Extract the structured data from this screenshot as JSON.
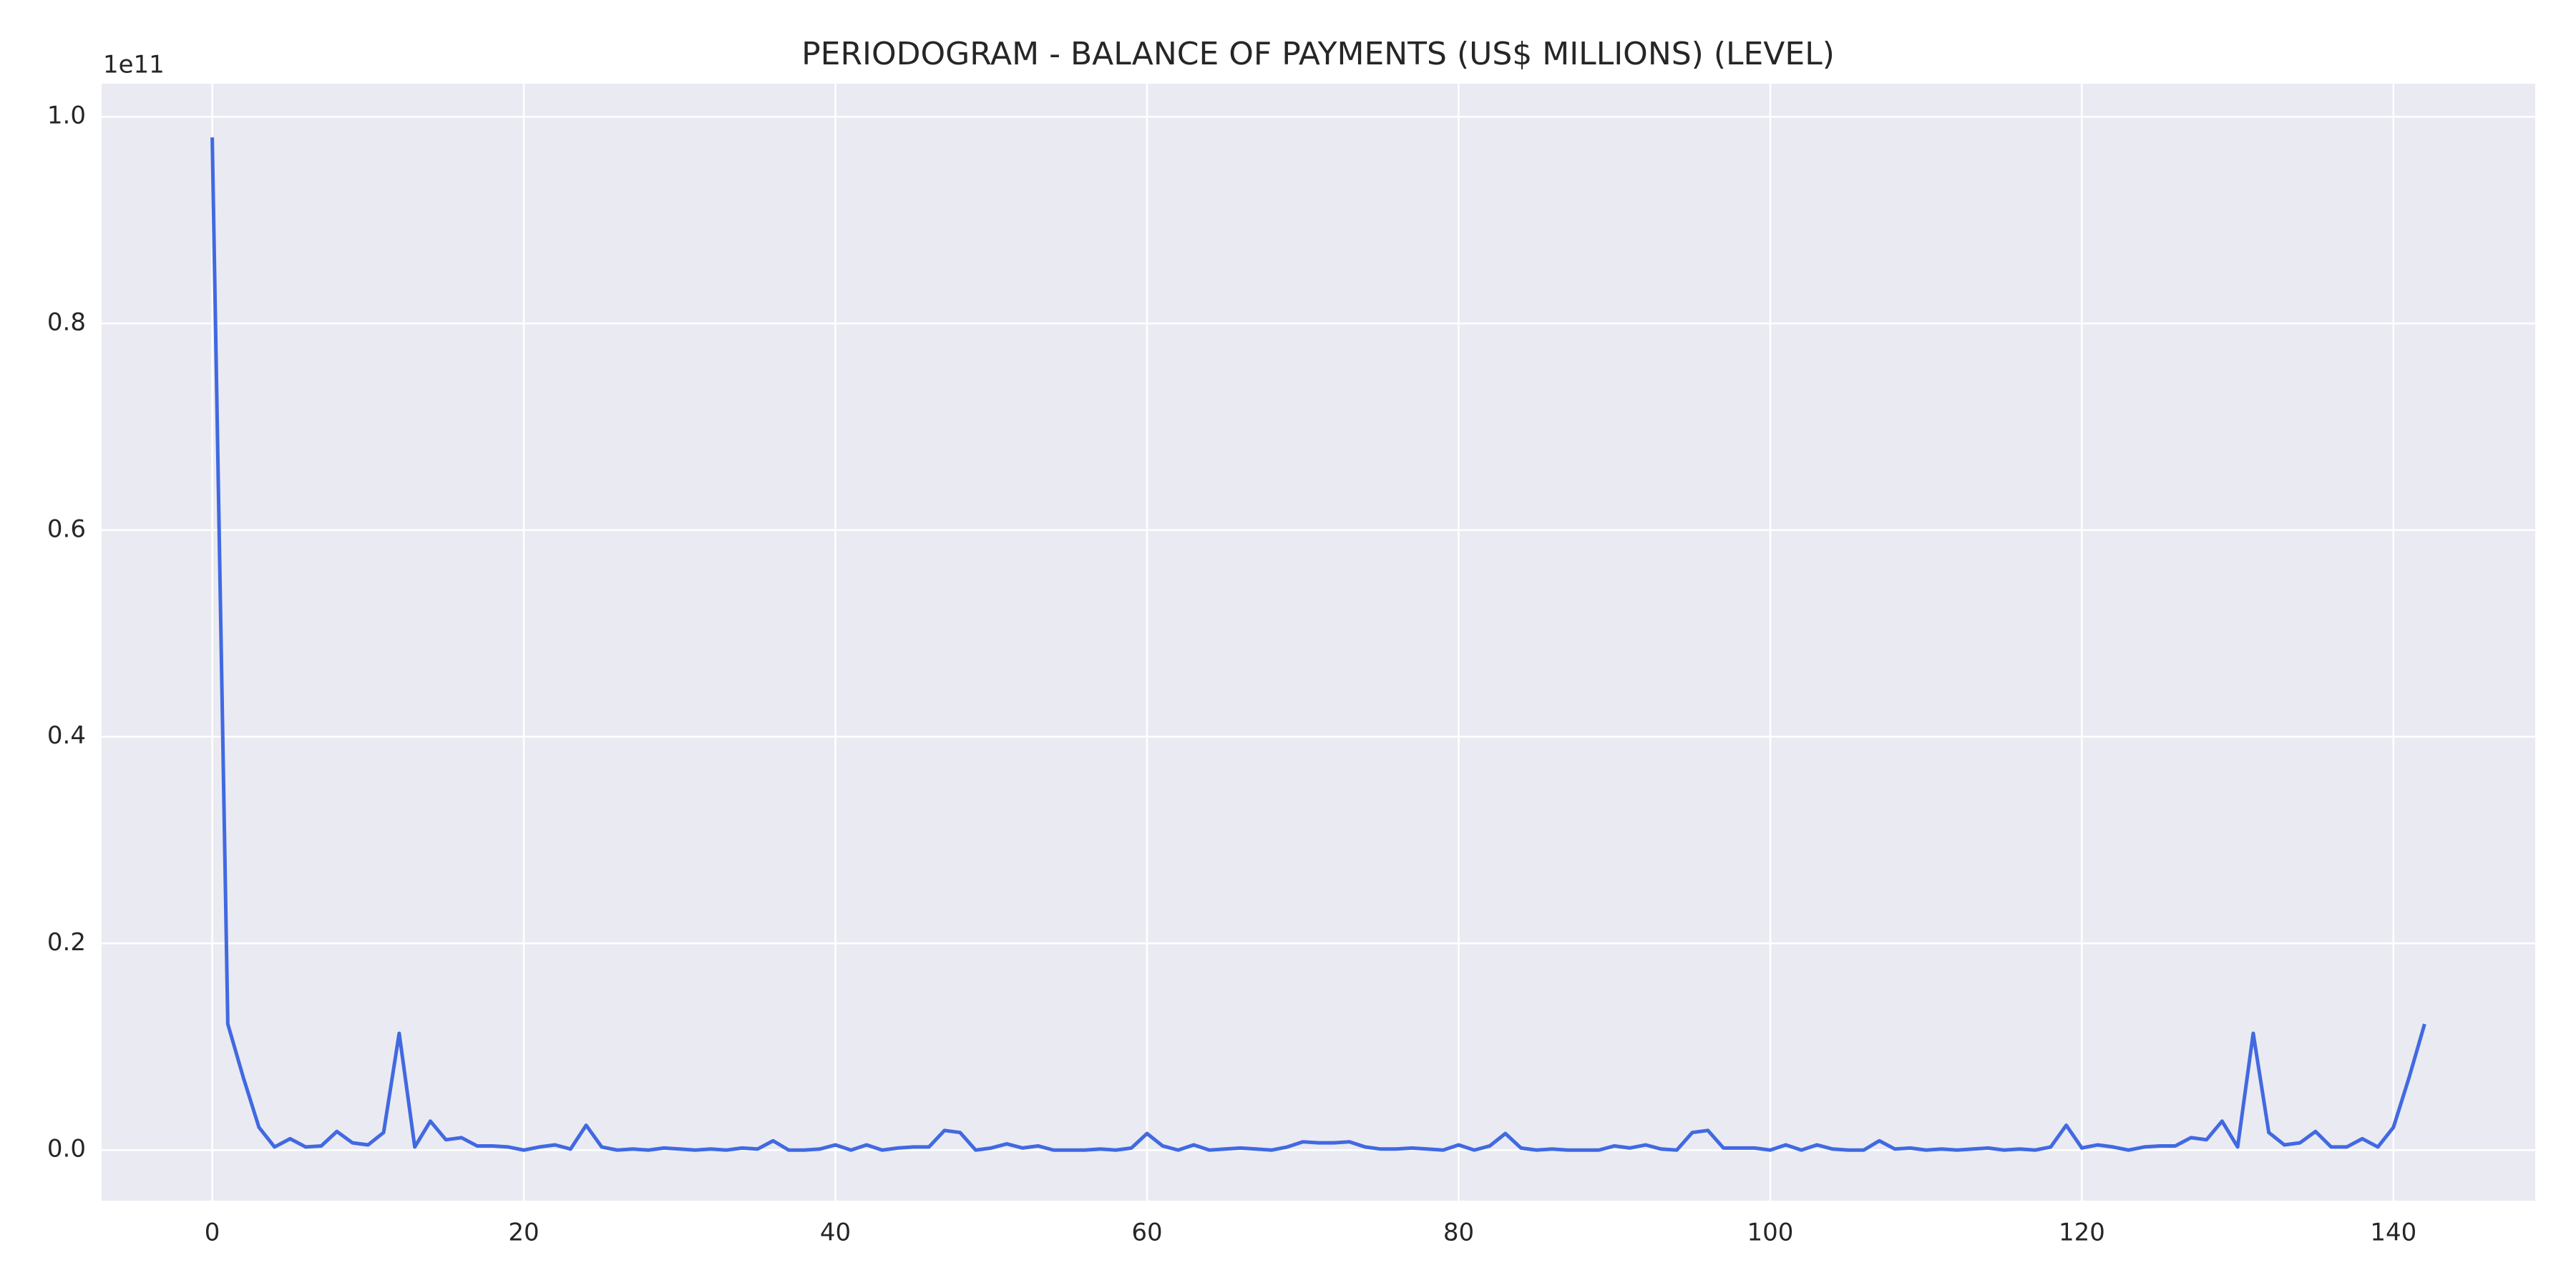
{
  "chart_data": {
    "type": "line",
    "title": "PERIODOGRAM - BALANCE OF PAYMENTS (US$ MILLIONS) (LEVEL)",
    "offset_text": "1e11",
    "x": [
      0,
      1,
      2,
      3,
      4,
      5,
      6,
      7,
      8,
      9,
      10,
      11,
      12,
      13,
      14,
      15,
      16,
      17,
      18,
      19,
      20,
      21,
      22,
      23,
      24,
      25,
      26,
      27,
      28,
      29,
      30,
      31,
      32,
      33,
      34,
      35,
      36,
      37,
      38,
      39,
      40,
      41,
      42,
      43,
      44,
      45,
      46,
      47,
      48,
      49,
      50,
      51,
      52,
      53,
      54,
      55,
      56,
      57,
      58,
      59,
      60,
      61,
      62,
      63,
      64,
      65,
      66,
      67,
      68,
      69,
      70,
      71,
      72,
      73,
      74,
      75,
      76,
      77,
      78,
      79,
      80,
      81,
      82,
      83,
      84,
      85,
      86,
      87,
      88,
      89,
      90,
      91,
      92,
      93,
      94,
      95,
      96,
      97,
      98,
      99,
      100,
      101,
      102,
      103,
      104,
      105,
      106,
      107,
      108,
      109,
      110,
      111,
      112,
      113,
      114,
      115,
      116,
      117,
      118,
      119,
      120,
      121,
      122,
      123,
      124,
      125,
      126,
      127,
      128,
      129,
      130,
      131,
      132,
      133,
      134,
      135,
      136,
      137,
      138,
      139,
      140,
      141,
      142
    ],
    "values": [
      0.98,
      0.122,
      0.07,
      0.022,
      0.003,
      0.011,
      0.003,
      0.004,
      0.018,
      0.007,
      0.005,
      0.017,
      0.113,
      0.003,
      0.028,
      0.01,
      0.012,
      0.004,
      0.004,
      0.003,
      0.0,
      0.003,
      0.005,
      0.001,
      0.024,
      0.003,
      0.0,
      0.001,
      0.0,
      0.002,
      0.001,
      0.0,
      0.001,
      0.0,
      0.002,
      0.001,
      0.009,
      0.0,
      0.0,
      0.001,
      0.005,
      0.0,
      0.005,
      0.0,
      0.002,
      0.003,
      0.003,
      0.019,
      0.017,
      0.0,
      0.002,
      0.006,
      0.002,
      0.004,
      0.0,
      0.0,
      0.0,
      0.001,
      0.0,
      0.002,
      0.016,
      0.004,
      0.0,
      0.005,
      0.0,
      0.001,
      0.002,
      0.001,
      0.0,
      0.003,
      0.008,
      0.007,
      0.007,
      0.008,
      0.003,
      0.001,
      0.001,
      0.002,
      0.001,
      0.0,
      0.005,
      0.0,
      0.004,
      0.016,
      0.002,
      0.0,
      0.001,
      0.0,
      0.0,
      0.0,
      0.004,
      0.002,
      0.005,
      0.001,
      0.0,
      0.017,
      0.019,
      0.002,
      0.002,
      0.002,
      0.0,
      0.005,
      0.0,
      0.005,
      0.001,
      0.0,
      0.0,
      0.009,
      0.001,
      0.002,
      0.0,
      0.001,
      0.0,
      0.001,
      0.002,
      0.0,
      0.001,
      0.0,
      0.003,
      0.024,
      0.002,
      0.005,
      0.003,
      0.0,
      0.003,
      0.004,
      0.004,
      0.012,
      0.01,
      0.028,
      0.003,
      0.113,
      0.017,
      0.005,
      0.007,
      0.018,
      0.003,
      0.003,
      0.011,
      0.003,
      0.022,
      0.07,
      0.122
    ],
    "color": "#4169e1",
    "xlim": [
      -7.1,
      149.1
    ],
    "xticks": [
      0,
      20,
      40,
      60,
      80,
      100,
      120,
      140
    ],
    "ylim": [
      -0.049,
      1.032
    ],
    "yticks": [
      {
        "value": 0,
        "label": "0.0"
      },
      0.2,
      0.4,
      0.6,
      0.8,
      {
        "value": 1,
        "label": "1.0"
      }
    ],
    "grid": true
  }
}
